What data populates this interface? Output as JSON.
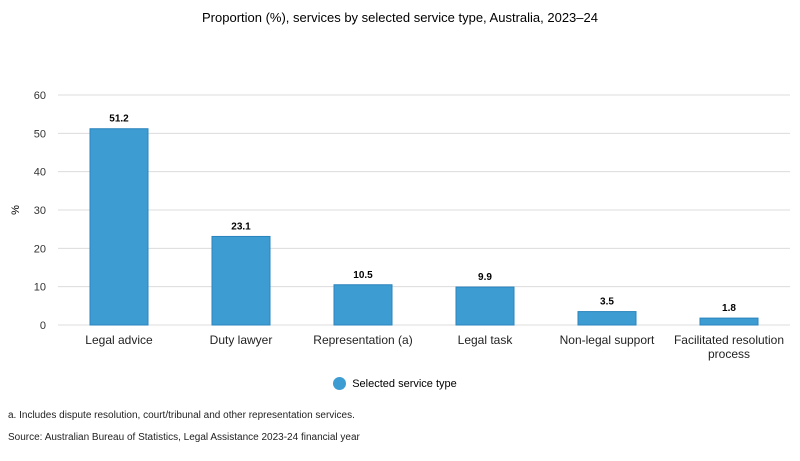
{
  "chart_data": {
    "type": "bar",
    "title": "Proportion (%), services by selected service type, Australia, 2023–24",
    "ylabel": "%",
    "xlabel": "",
    "ylim": [
      0,
      60
    ],
    "yticks": [
      0,
      10,
      20,
      30,
      40,
      50,
      60
    ],
    "categories": [
      [
        "Legal advice"
      ],
      [
        "Duty lawyer"
      ],
      [
        "Representation (a)"
      ],
      [
        "Legal task"
      ],
      [
        "Non-legal support"
      ],
      [
        "Facilitated resolution",
        "process"
      ]
    ],
    "series": [
      {
        "name": "Selected service type",
        "values": [
          51.2,
          23.1,
          10.5,
          9.9,
          3.5,
          1.8
        ],
        "data_labels": [
          "51.2",
          "23.1",
          "10.5",
          "9.9",
          "3.5",
          "1.8"
        ],
        "color": "#3d9cd2"
      }
    ],
    "grid": true,
    "legend_position": "bottom-center"
  },
  "notes": {
    "footnote": "a. Includes dispute resolution, court/tribunal and other representation services.",
    "source": "Source: Australian Bureau of Statistics, Legal Assistance 2023-24 financial year"
  },
  "colors": {
    "bar": "#3d9cd2",
    "bar_border": "#2a84bd",
    "grid": "#dcdcdc",
    "axis_text": "#333333"
  }
}
